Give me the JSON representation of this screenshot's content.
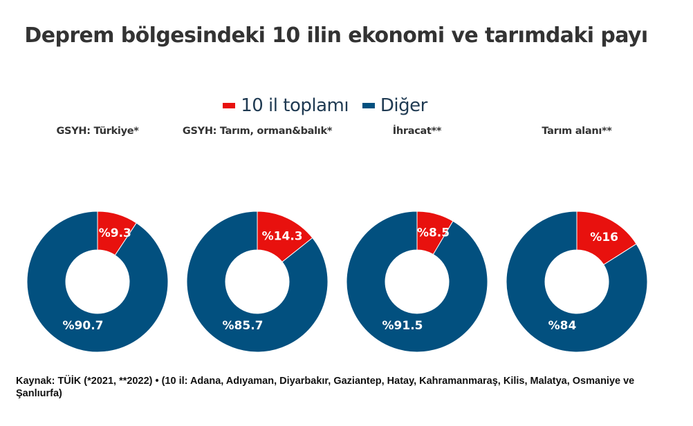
{
  "title": "Deprem bölgesindeki 10 ilin ekonomi ve tarımdaki payı",
  "legend": [
    {
      "label": "10 il toplamı",
      "color": "#e8110e"
    },
    {
      "label": "Diğer",
      "color": "#02507f"
    }
  ],
  "footer": "Kaynak: TÜİK (*2021, **2022) • (10 il: Adana, Adıyaman, Diyarbakır, Gaziantep, Hatay, Kahramanmaraş, Kilis, Malatya, Osmaniye ve Şanlıurfa)",
  "chart_data": [
    {
      "type": "pie",
      "subtype": "donut",
      "title": "GSYH: Türkiye*",
      "categories": [
        "10 il toplamı",
        "Diğer"
      ],
      "values": [
        9.3,
        90.7
      ],
      "labels": [
        "%9.3",
        "%90.7"
      ],
      "colors": [
        "#e8110e",
        "#02507f"
      ]
    },
    {
      "type": "pie",
      "subtype": "donut",
      "title": "GSYH: Tarım, orman&balık*",
      "categories": [
        "10 il toplamı",
        "Diğer"
      ],
      "values": [
        14.3,
        85.7
      ],
      "labels": [
        "%14.3",
        "%85.7"
      ],
      "colors": [
        "#e8110e",
        "#02507f"
      ]
    },
    {
      "type": "pie",
      "subtype": "donut",
      "title": "İhracat**",
      "categories": [
        "10 il toplamı",
        "Diğer"
      ],
      "values": [
        8.5,
        91.5
      ],
      "labels": [
        "%8.5",
        "%91.5"
      ],
      "colors": [
        "#e8110e",
        "#02507f"
      ]
    },
    {
      "type": "pie",
      "subtype": "donut",
      "title": "Tarım alanı**",
      "categories": [
        "10 il toplamı",
        "Diğer"
      ],
      "values": [
        16,
        84
      ],
      "labels": [
        "%16",
        "%84"
      ],
      "colors": [
        "#e8110e",
        "#02507f"
      ]
    }
  ]
}
